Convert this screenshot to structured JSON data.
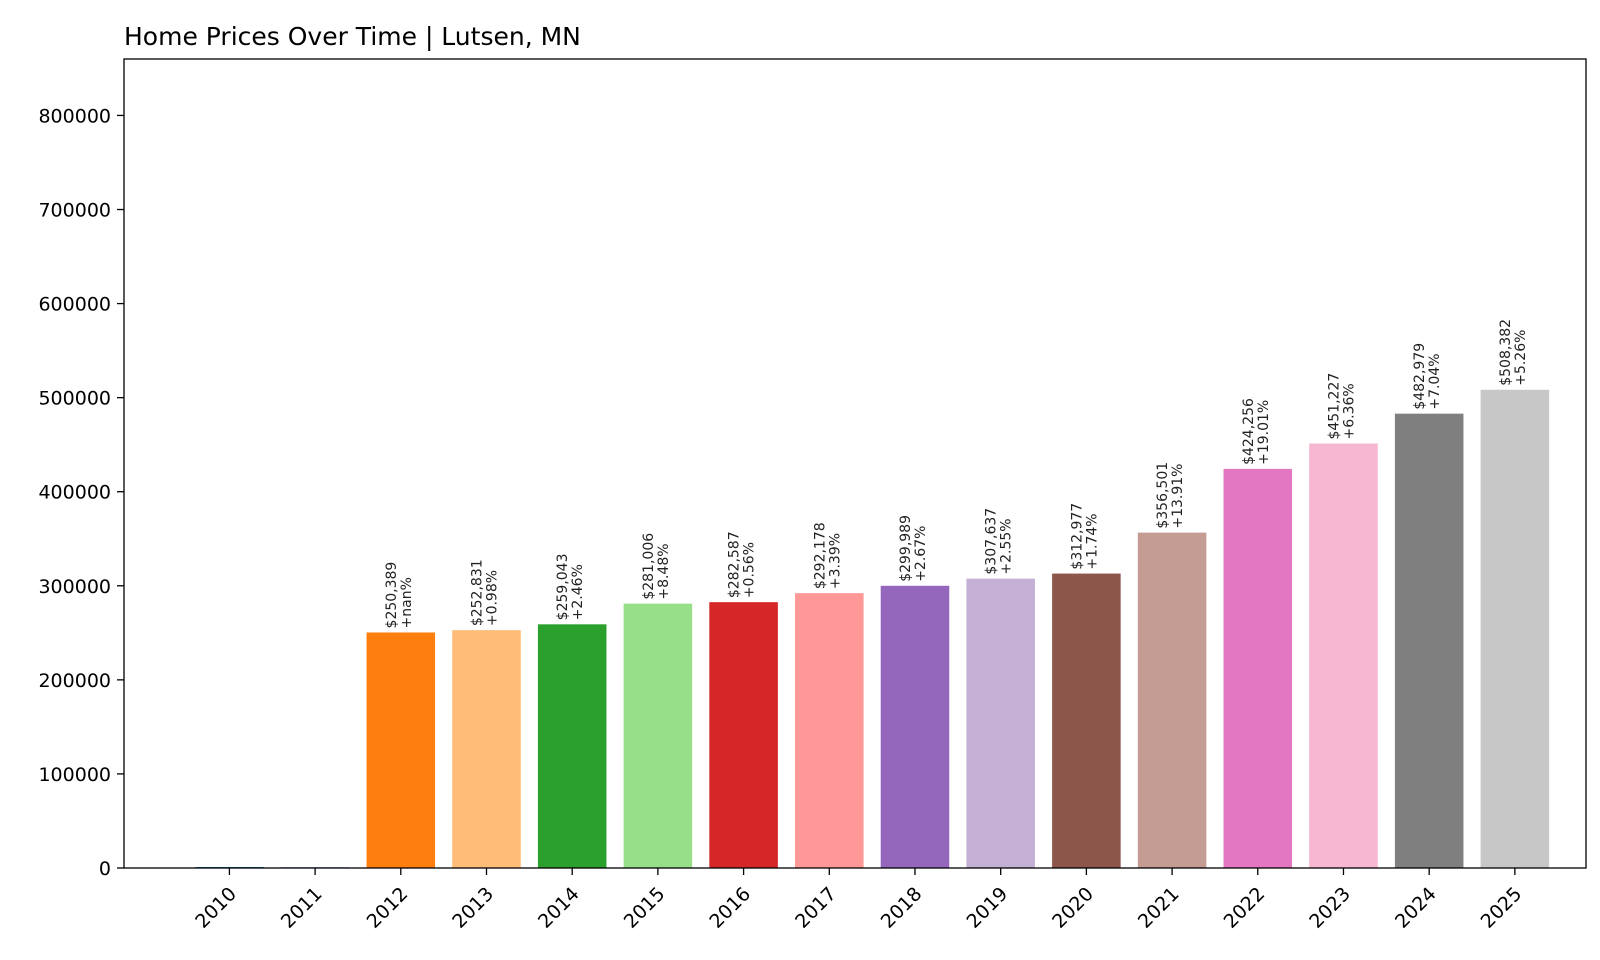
{
  "chart_data": {
    "type": "bar",
    "title": "Home Prices Over Time | Lutsen, MN",
    "xlabel": "",
    "ylabel": "",
    "ylim": [
      0,
      860000
    ],
    "yticks": [
      0,
      100000,
      200000,
      300000,
      400000,
      500000,
      600000,
      700000,
      800000
    ],
    "ytick_labels": [
      "0",
      "100000",
      "200000",
      "300000",
      "400000",
      "500000",
      "600000",
      "700000",
      "800000"
    ],
    "categories": [
      "2010",
      "2011",
      "2012",
      "2013",
      "2014",
      "2015",
      "2016",
      "2017",
      "2018",
      "2019",
      "2020",
      "2021",
      "2022",
      "2023",
      "2024",
      "2025"
    ],
    "values": [
      0,
      0,
      250389,
      252831,
      259043,
      281006,
      282587,
      292178,
      299989,
      307637,
      312977,
      356501,
      424256,
      451227,
      482979,
      508382
    ],
    "value_labels": [
      "",
      "",
      "$250,389",
      "$252,831",
      "$259,043",
      "$281,006",
      "$282,587",
      "$292,178",
      "$299,989",
      "$307,637",
      "$312,977",
      "$356,501",
      "$424,256",
      "$451,227",
      "$482,979",
      "$508,382"
    ],
    "change_labels": [
      "",
      "",
      "+nan%",
      "+0.98%",
      "+2.46%",
      "+8.48%",
      "+0.56%",
      "+3.39%",
      "+2.67%",
      "+2.55%",
      "+1.74%",
      "+13.91%",
      "+19.01%",
      "+6.36%",
      "+7.04%",
      "+5.26%"
    ],
    "colors": [
      "#1f77b4",
      "#aec7e8",
      "#ff7f0e",
      "#ffbb78",
      "#2ca02c",
      "#98df8a",
      "#d62728",
      "#ff9896",
      "#9467bd",
      "#c5b0d5",
      "#8c564b",
      "#c49c94",
      "#e377c2",
      "#f7b6d2",
      "#7f7f7f",
      "#c7c7c7"
    ],
    "grid": false,
    "legend": "none"
  }
}
